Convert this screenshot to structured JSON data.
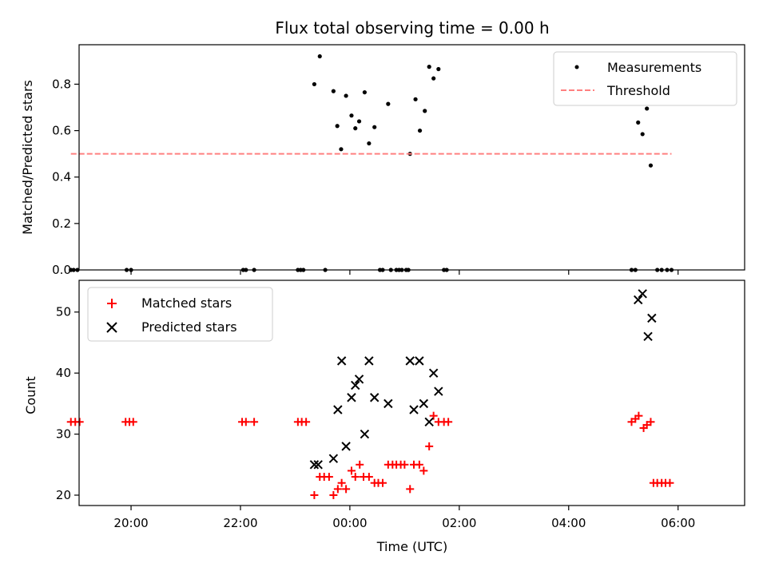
{
  "title": "Flux total observing time = 0.00 h",
  "xlabel": "Time (UTC)",
  "xtick_labels": [
    "20:00",
    "22:00",
    "00:00",
    "02:00",
    "04:00",
    "06:00"
  ],
  "colors": {
    "measurements": "#000000",
    "threshold": "#ff8080",
    "matched": "#ff0000",
    "predicted": "#000000"
  },
  "chart_data": [
    {
      "type": "scatter",
      "ylabel": "Matched/Predicted stars",
      "xlim": [
        "19:03",
        "07:13"
      ],
      "x_unit": "hours relative to 00:00 UTC",
      "ylim": [
        0,
        0.97
      ],
      "yticks": [
        "0.0",
        "0.2",
        "0.4",
        "0.6",
        "0.8"
      ],
      "legend_position": "top-right",
      "series": [
        {
          "name": "Measurements",
          "marker": "dot",
          "points": [
            [
              -5.1,
              0
            ],
            [
              -5.05,
              0
            ],
            [
              -4.98,
              0
            ],
            [
              -4.08,
              0
            ],
            [
              -4.0,
              0
            ],
            [
              -1.95,
              0
            ],
            [
              -1.9,
              0
            ],
            [
              -1.75,
              0
            ],
            [
              -0.95,
              0
            ],
            [
              -0.9,
              0
            ],
            [
              -0.85,
              0
            ],
            [
              -0.45,
              0
            ],
            [
              -0.65,
              0.8
            ],
            [
              -0.55,
              0.92
            ],
            [
              -0.3,
              0.77
            ],
            [
              -0.23,
              0.62
            ],
            [
              -0.16,
              0.52
            ],
            [
              -0.07,
              0.75
            ],
            [
              0.03,
              0.665
            ],
            [
              0.1,
              0.61
            ],
            [
              0.17,
              0.64
            ],
            [
              0.27,
              0.765
            ],
            [
              0.35,
              0.545
            ],
            [
              0.45,
              0.615
            ],
            [
              0.55,
              0
            ],
            [
              0.6,
              0
            ],
            [
              0.7,
              0.715
            ],
            [
              0.75,
              0
            ],
            [
              0.85,
              0
            ],
            [
              0.9,
              0
            ],
            [
              0.95,
              0
            ],
            [
              1.03,
              0
            ],
            [
              1.07,
              0
            ],
            [
              1.1,
              0.5
            ],
            [
              1.2,
              0.735
            ],
            [
              1.28,
              0.6
            ],
            [
              1.37,
              0.685
            ],
            [
              1.45,
              0.875
            ],
            [
              1.53,
              0.825
            ],
            [
              1.62,
              0.865
            ],
            [
              1.72,
              0
            ],
            [
              1.77,
              0
            ],
            [
              5.15,
              0
            ],
            [
              5.22,
              0
            ],
            [
              5.27,
              0.635
            ],
            [
              5.35,
              0.585
            ],
            [
              5.43,
              0.695
            ],
            [
              5.5,
              0.45
            ],
            [
              5.62,
              0
            ],
            [
              5.7,
              0
            ],
            [
              5.8,
              0
            ],
            [
              5.88,
              0
            ]
          ]
        },
        {
          "name": "Threshold",
          "marker": "dashed-line",
          "points": [
            [
              -5.1,
              0.5
            ],
            [
              5.88,
              0.5
            ]
          ]
        }
      ]
    },
    {
      "type": "scatter",
      "ylabel": "Count",
      "xlim": [
        "19:03",
        "07:13"
      ],
      "x_unit": "hours relative to 00:00 UTC",
      "ylim": [
        18.3,
        55.2
      ],
      "yticks": [
        "20",
        "30",
        "40",
        "50"
      ],
      "legend_position": "top-left",
      "series": [
        {
          "name": "Matched stars",
          "marker": "plus",
          "points": [
            [
              -5.1,
              32
            ],
            [
              -5.02,
              32
            ],
            [
              -4.94,
              32
            ],
            [
              -4.1,
              32
            ],
            [
              -4.03,
              32
            ],
            [
              -3.96,
              32
            ],
            [
              -1.97,
              32
            ],
            [
              -1.9,
              32
            ],
            [
              -1.75,
              32
            ],
            [
              -0.95,
              32
            ],
            [
              -0.88,
              32
            ],
            [
              -0.8,
              32
            ],
            [
              -0.65,
              20
            ],
            [
              -0.55,
              23
            ],
            [
              -0.47,
              23
            ],
            [
              -0.38,
              23
            ],
            [
              -0.3,
              20
            ],
            [
              -0.22,
              21
            ],
            [
              -0.15,
              22
            ],
            [
              -0.07,
              21
            ],
            [
              0.03,
              24
            ],
            [
              0.1,
              23
            ],
            [
              0.18,
              25
            ],
            [
              0.25,
              23
            ],
            [
              0.35,
              23
            ],
            [
              0.45,
              22
            ],
            [
              0.52,
              22
            ],
            [
              0.6,
              22
            ],
            [
              0.7,
              25
            ],
            [
              0.78,
              25
            ],
            [
              0.85,
              25
            ],
            [
              0.93,
              25
            ],
            [
              1.0,
              25
            ],
            [
              1.1,
              21
            ],
            [
              1.17,
              25
            ],
            [
              1.27,
              25
            ],
            [
              1.35,
              24
            ],
            [
              1.45,
              28
            ],
            [
              1.53,
              33
            ],
            [
              1.62,
              32
            ],
            [
              1.72,
              32
            ],
            [
              1.8,
              32
            ],
            [
              5.15,
              32
            ],
            [
              5.22,
              32.5
            ],
            [
              5.28,
              33
            ],
            [
              5.37,
              31
            ],
            [
              5.43,
              31.5
            ],
            [
              5.5,
              32
            ],
            [
              5.55,
              22
            ],
            [
              5.62,
              22
            ],
            [
              5.7,
              22
            ],
            [
              5.77,
              22
            ],
            [
              5.85,
              22
            ]
          ]
        },
        {
          "name": "Predicted stars",
          "marker": "x",
          "points": [
            [
              -0.65,
              25
            ],
            [
              -0.58,
              25
            ],
            [
              -0.3,
              26
            ],
            [
              -0.22,
              34
            ],
            [
              -0.15,
              42
            ],
            [
              -0.07,
              28
            ],
            [
              0.03,
              36
            ],
            [
              0.1,
              38
            ],
            [
              0.17,
              39
            ],
            [
              0.27,
              30
            ],
            [
              0.35,
              42
            ],
            [
              0.45,
              36
            ],
            [
              0.7,
              35
            ],
            [
              1.1,
              42
            ],
            [
              1.17,
              34
            ],
            [
              1.27,
              42
            ],
            [
              1.35,
              35
            ],
            [
              1.45,
              32
            ],
            [
              1.53,
              40
            ],
            [
              1.62,
              37
            ],
            [
              5.27,
              52
            ],
            [
              5.35,
              53
            ],
            [
              5.45,
              46
            ],
            [
              5.52,
              49
            ]
          ]
        }
      ]
    }
  ]
}
